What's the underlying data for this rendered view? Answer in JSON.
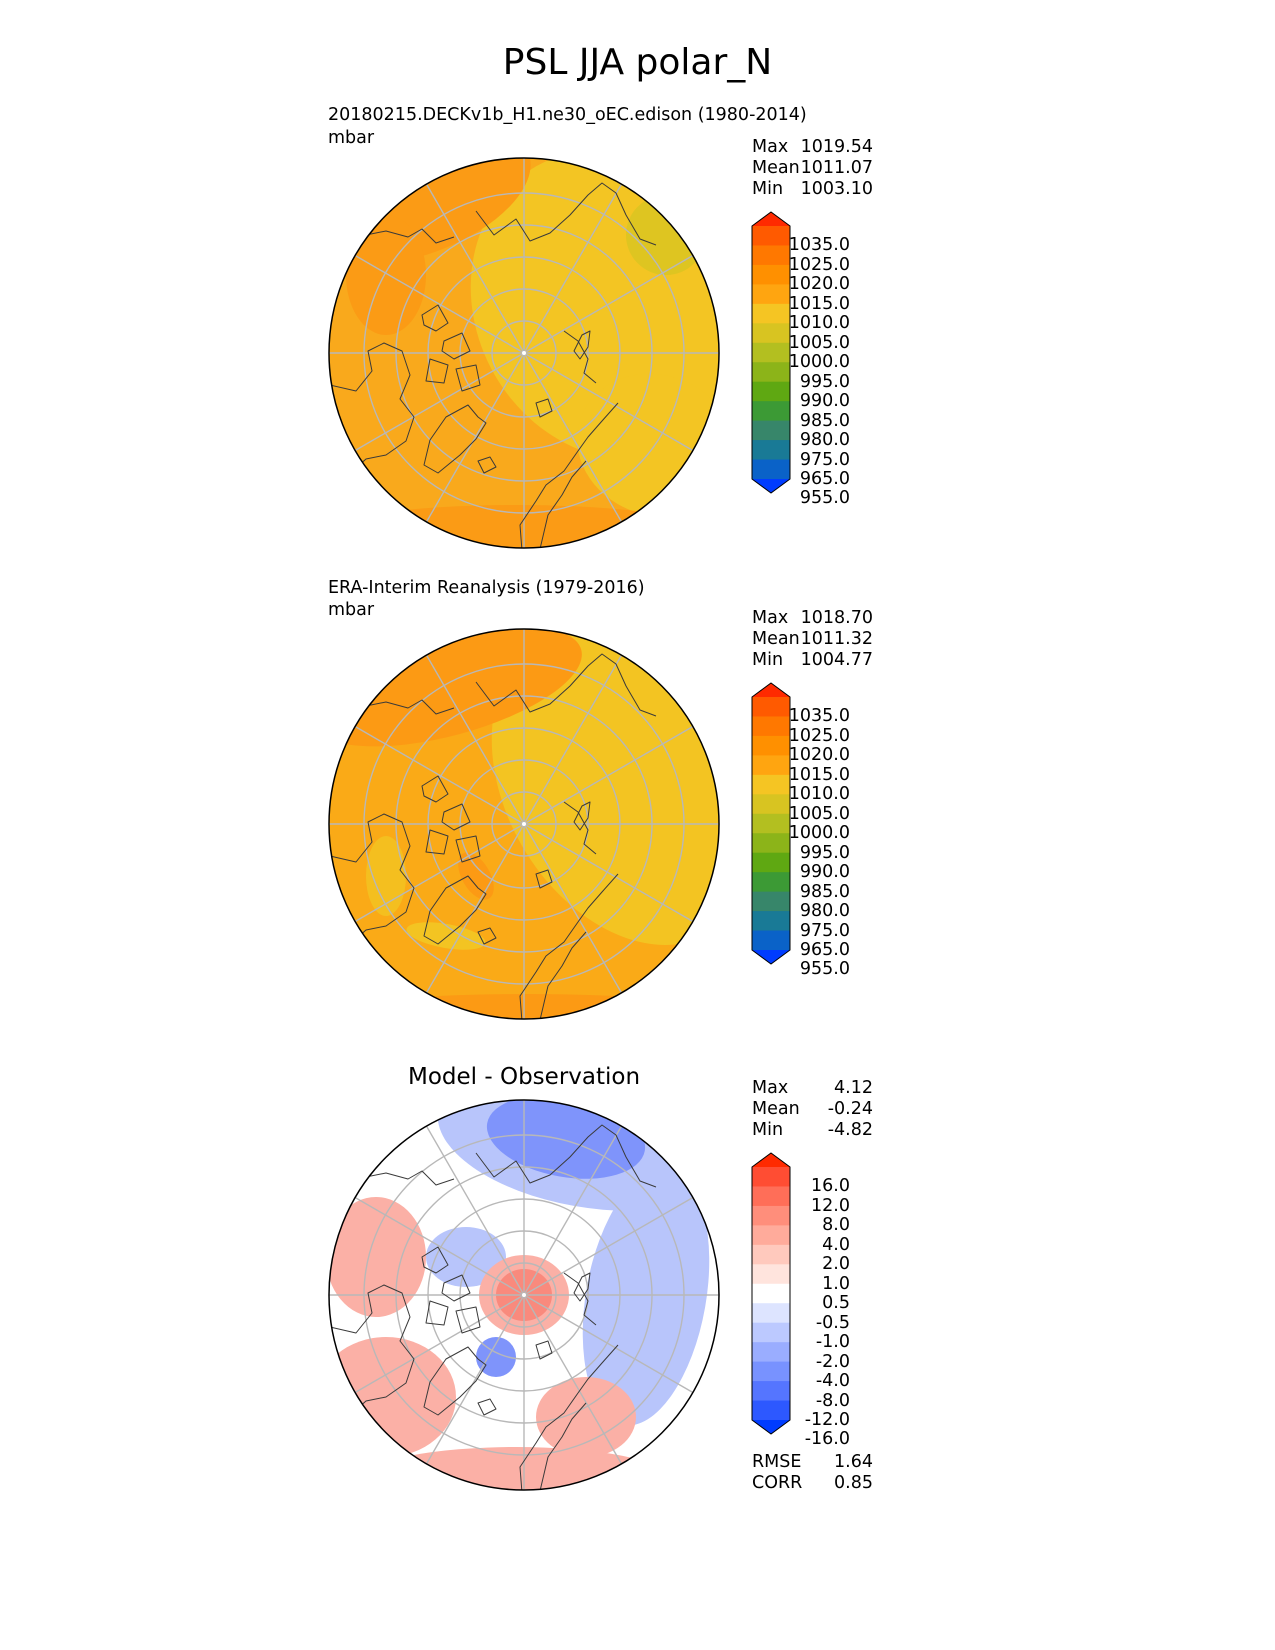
{
  "title": "PSL JJA polar_N",
  "panels": [
    {
      "id": "test",
      "title_line1": "20180215.DECKv1b_H1.ne30_oEC.edison (1980-2014)",
      "title_line2": "mbar",
      "stats": {
        "max_label": "Max",
        "max": "1019.54",
        "mean_label": "Mean",
        "mean": "1011.07",
        "min_label": "Min",
        "min": "1003.10"
      },
      "colorbar": {
        "levels": [
          "1035.0",
          "1025.0",
          "1020.0",
          "1015.0",
          "1010.0",
          "1005.0",
          "1000.0",
          "995.0",
          "990.0",
          "985.0",
          "980.0",
          "975.0",
          "965.0",
          "955.0"
        ],
        "colors": [
          "#ff2a00",
          "#ff5a00",
          "#ff7800",
          "#ff9000",
          "#ffa510",
          "#f5c523",
          "#d8c421",
          "#b3bf20",
          "#8cb419",
          "#5fa812",
          "#3c9a35",
          "#37866a",
          "#197a96",
          "#0a62c8",
          "#003cff"
        ]
      }
    },
    {
      "id": "reference",
      "title_line1": "ERA-Interim Reanalysis (1979-2016)",
      "title_line2": "mbar",
      "stats": {
        "max_label": "Max",
        "max": "1018.70",
        "mean_label": "Mean",
        "mean": "1011.32",
        "min_label": "Min",
        "min": "1004.77"
      },
      "colorbar": {
        "levels": [
          "1035.0",
          "1025.0",
          "1020.0",
          "1015.0",
          "1010.0",
          "1005.0",
          "1000.0",
          "995.0",
          "990.0",
          "985.0",
          "980.0",
          "975.0",
          "965.0",
          "955.0"
        ],
        "colors": [
          "#ff2a00",
          "#ff5a00",
          "#ff7800",
          "#ff9000",
          "#ffa510",
          "#f5c523",
          "#d8c421",
          "#b3bf20",
          "#8cb419",
          "#5fa812",
          "#3c9a35",
          "#37866a",
          "#197a96",
          "#0a62c8",
          "#003cff"
        ]
      }
    },
    {
      "id": "difference",
      "title_line1": "Model - Observation",
      "stats": {
        "max_label": "Max",
        "max": "4.12",
        "mean_label": "Mean",
        "mean": "-0.24",
        "min_label": "Min",
        "min": "-4.82"
      },
      "metrics": {
        "rmse_label": "RMSE",
        "rmse": "1.64",
        "corr_label": "CORR",
        "corr": "0.85"
      },
      "colorbar": {
        "levels": [
          "16.0",
          "12.0",
          "8.0",
          "4.0",
          "2.0",
          "1.0",
          "0.5",
          "-0.5",
          "-1.0",
          "-2.0",
          "-4.0",
          "-8.0",
          "-12.0",
          "-16.0"
        ],
        "colors": [
          "#ff2a00",
          "#ff4d33",
          "#ff6e58",
          "#ff8e7b",
          "#ffab9b",
          "#ffc9bd",
          "#ffe4dd",
          "#ffffff",
          "#dde4ff",
          "#bcc9ff",
          "#9aadff",
          "#7892ff",
          "#5575ff",
          "#2d58ff",
          "#003cff"
        ]
      }
    }
  ],
  "colors": {
    "test_base": "#f9a91c",
    "test_high": "#fb9b15",
    "test_low": "#f3c523",
    "ref_base": "#faaa17",
    "ref_high": "#fc9a14",
    "ref_low": "#f3c422",
    "diff_pos": "#fbb0a6",
    "diff_pos_strong": "#f98a7d",
    "diff_neg": "#b8c5fb",
    "diff_neg_strong": "#7f94fb",
    "grid": "#b8b8b8",
    "coast": "#3a3a3a"
  }
}
